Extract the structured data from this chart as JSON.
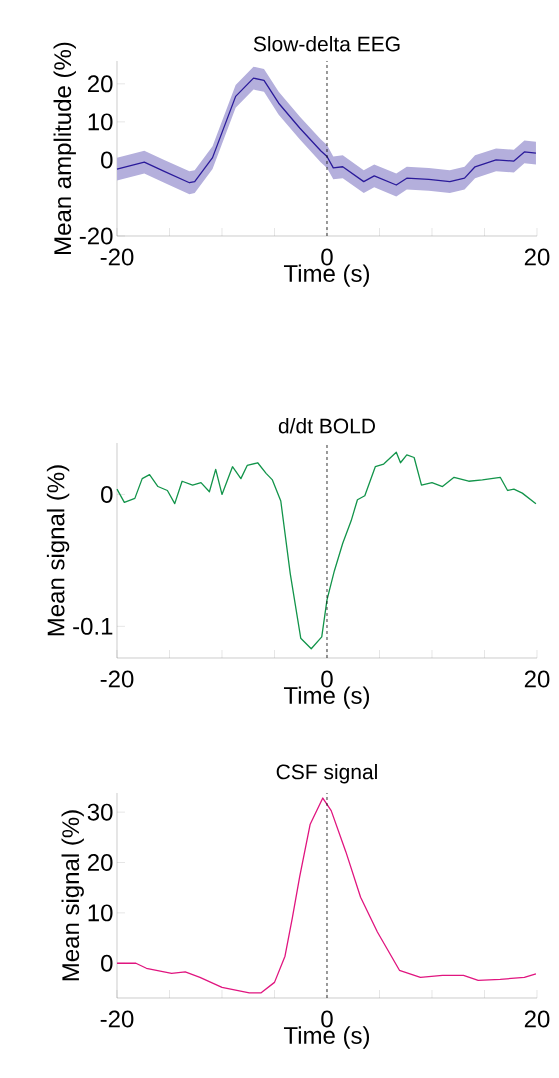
{
  "chart_data": [
    {
      "type": "line",
      "title": "Slow-delta EEG",
      "xlabel": "Time (s)",
      "ylabel": "Mean amplitude (%)",
      "xlim": [
        -20,
        20
      ],
      "ylim": [
        -20,
        26
      ],
      "xticks": [
        -20,
        {
          "value": -15,
          "label": null
        },
        {
          "value": -10,
          "label": null
        },
        {
          "value": -5,
          "label": null
        },
        0,
        {
          "value": 5,
          "label": null
        },
        {
          "value": 10,
          "label": null
        },
        {
          "value": 15,
          "label": null
        },
        20
      ],
      "yticks": [
        -20,
        0,
        10,
        20
      ],
      "ref_lines": [
        {
          "axis": "x",
          "value": 0,
          "color": "#000000",
          "line_style": "dashed"
        }
      ],
      "series": [
        {
          "color": "#2a1a9a",
          "x": [
            -20,
            -17.4,
            -15.5,
            -13.1,
            -12.6,
            -10.9,
            -8.7,
            -7.0,
            -6.0,
            -4.6,
            -2.6,
            -0.6,
            0,
            0.6,
            1.5,
            3.5,
            4.5,
            6.6,
            7.6,
            9.7,
            11.7,
            13.1,
            14.1,
            16.1,
            17.8,
            18.8,
            19.9
          ],
          "values": [
            -2.4,
            -0.6,
            -3,
            -6,
            -5.7,
            0.6,
            16.7,
            21.5,
            20.9,
            14.9,
            8.4,
            2.4,
            0.9,
            -2.1,
            -1.8,
            -5.7,
            -4.2,
            -6.6,
            -4.8,
            -5.1,
            -5.7,
            -4.8,
            -1.8,
            0,
            -0.3,
            2.1,
            1.8
          ],
          "lower": [
            -5.4,
            -3.6,
            -6,
            -9,
            -8.7,
            -2.4,
            13.7,
            18.5,
            17.9,
            11.9,
            5.4,
            -0.6,
            -2.1,
            -5.1,
            -4.8,
            -8.7,
            -7.2,
            -9.6,
            -7.8,
            -8.1,
            -8.7,
            -7.8,
            -4.8,
            -3,
            -3.3,
            -0.9,
            -1.2
          ],
          "upper": [
            0.6,
            2.4,
            0,
            -3,
            -2.7,
            3.6,
            19.7,
            24.5,
            23.9,
            17.9,
            11.4,
            5.4,
            3.9,
            0.9,
            1.2,
            -2.7,
            -1.2,
            -3.6,
            -1.8,
            -2.1,
            -2.7,
            -1.8,
            1.2,
            3,
            2.7,
            5.1,
            4.8
          ]
        }
      ]
    },
    {
      "type": "line",
      "title": "d/dt BOLD",
      "xlabel": "Time (s)",
      "ylabel": "Mean signal (%)",
      "xlim": [
        -20,
        20
      ],
      "ylim": [
        -0.124,
        0.039
      ],
      "xticks": [
        -20,
        {
          "value": -15,
          "label": null
        },
        {
          "value": -10,
          "label": null
        },
        {
          "value": -5,
          "label": null
        },
        0,
        {
          "value": 5,
          "label": null
        },
        {
          "value": 10,
          "label": null
        },
        {
          "value": 15,
          "label": null
        },
        20
      ],
      "yticks": [
        -0.1,
        0
      ],
      "ref_lines": [
        {
          "axis": "x",
          "value": 0,
          "color": "#000000",
          "line_style": "dashed"
        }
      ],
      "series": [
        {
          "color": "#12944a",
          "x": [
            -20,
            -19.3,
            -18.3,
            -17.6,
            -16.9,
            -16.1,
            -15.2,
            -14.5,
            -13.8,
            -12.8,
            -12.0,
            -11.2,
            -10.6,
            -10,
            -9,
            -8.2,
            -7.6,
            -6.6,
            -5.8,
            -5.2,
            -4.4,
            -3.5,
            -2.5,
            -1.5,
            -0.5,
            0,
            0.7,
            1.5,
            2.3,
            2.9,
            3.6,
            4.6,
            5.4,
            6.6,
            7.0,
            7.6,
            8.3,
            9.0,
            10.0,
            11.0,
            12.1,
            13.5,
            14.8,
            16.5,
            17.2,
            17.8,
            18.6,
            19.9
          ],
          "values": [
            0.004,
            -0.006,
            -0.003,
            0.012,
            0.015,
            0.006,
            0.003,
            -0.007,
            0.01,
            0.007,
            0.009,
            0.002,
            0.019,
            0,
            0.021,
            0.012,
            0.022,
            0.024,
            0.016,
            0.011,
            -0.005,
            -0.06,
            -0.109,
            -0.117,
            -0.108,
            -0.08,
            -0.058,
            -0.037,
            -0.02,
            -0.004,
            -0.001,
            0.021,
            0.023,
            0.032,
            0.024,
            0.03,
            0.028,
            0.007,
            0.009,
            0.006,
            0.013,
            0.01,
            0.011,
            0.013,
            0.003,
            0.004,
            0.001,
            -0.007
          ]
        }
      ]
    },
    {
      "type": "line",
      "title": "CSF signal",
      "xlabel": "Time (s)",
      "ylabel": "Mean signal (%)",
      "xlim": [
        -20,
        20
      ],
      "ylim": [
        -6.9,
        33.8
      ],
      "xticks": [
        -20,
        {
          "value": -15,
          "label": null
        },
        {
          "value": -10,
          "label": null
        },
        {
          "value": -5,
          "label": null
        },
        0,
        {
          "value": 5,
          "label": null
        },
        {
          "value": 10,
          "label": null
        },
        {
          "value": 15,
          "label": null
        },
        20
      ],
      "yticks": [
        0,
        10,
        20,
        30
      ],
      "ref_lines": [
        {
          "axis": "x",
          "value": 0,
          "color": "#000000",
          "line_style": "dashed"
        }
      ],
      "series": [
        {
          "color": "#e0157f",
          "x": [
            -20,
            -18.2,
            -17.2,
            -14.8,
            -13.5,
            -12.1,
            -10,
            -7.4,
            -6.3,
            -5,
            -4,
            -3.3,
            -2.6,
            -1.6,
            -0.4,
            0.4,
            1.8,
            3.2,
            4.8,
            6.9,
            8.9,
            11,
            13,
            14.4,
            16.5,
            18.8,
            19.9
          ],
          "values": [
            0,
            0,
            -1,
            -2,
            -1.7,
            -2.8,
            -4.8,
            -5.9,
            -5.9,
            -3.8,
            1.4,
            9,
            17.2,
            27.6,
            32.8,
            30.3,
            22.1,
            13.1,
            6.2,
            -1.4,
            -2.8,
            -2.4,
            -2.4,
            -3.4,
            -3.2,
            -2.8,
            -2.1
          ]
        }
      ]
    }
  ]
}
